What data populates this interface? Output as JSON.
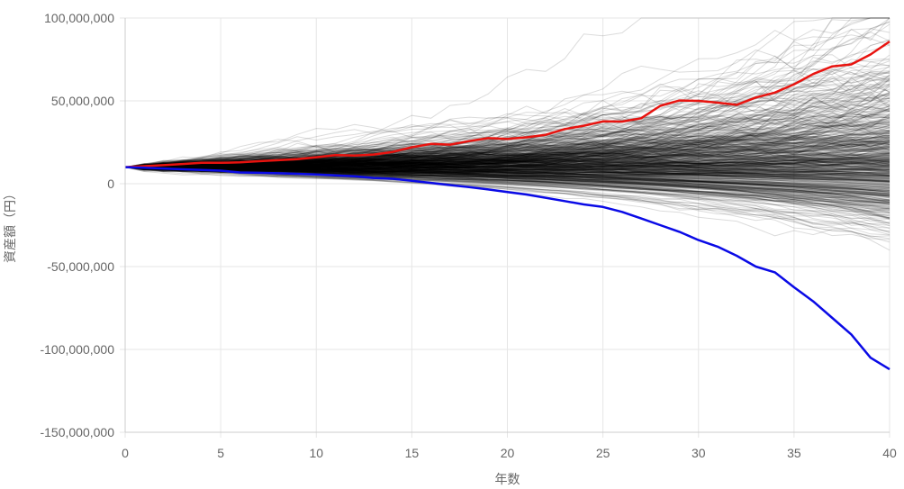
{
  "chart_data": {
    "type": "line",
    "xlabel": "年数",
    "ylabel": "資産額（円）",
    "xlim": [
      0,
      40
    ],
    "ylim": [
      -150000000,
      100000000
    ],
    "x_ticks": [
      0,
      5,
      10,
      15,
      20,
      25,
      30,
      35,
      40
    ],
    "y_ticks": [
      100000000,
      50000000,
      0,
      -50000000,
      -100000000,
      -150000000
    ],
    "x_tick_labels": [
      "0",
      "5",
      "10",
      "15",
      "20",
      "25",
      "30",
      "35",
      "40"
    ],
    "y_tick_labels": [
      "100,000,000",
      "50,000,000",
      "0",
      "-50,000,000",
      "-100,000,000",
      "-150,000,000"
    ],
    "grid": true,
    "legend": "none",
    "simulation": {
      "n_paths": 600,
      "start_value": 10000000,
      "color": "#000000"
    },
    "series": [
      {
        "color": "#e8130f",
        "x": [
          0,
          1,
          2,
          3,
          4,
          5,
          6,
          7,
          8,
          9,
          10,
          11,
          12,
          13,
          14,
          15,
          16,
          17,
          18,
          19,
          20,
          21,
          22,
          23,
          24,
          25,
          26,
          27,
          28,
          29,
          30,
          31,
          32,
          33,
          34,
          35,
          36,
          37,
          38,
          39,
          40
        ],
        "values": [
          10000000,
          10600000,
          11200000,
          11900000,
          12600000,
          12600000,
          12900000,
          13600000,
          14200000,
          14800000,
          16000000,
          17300000,
          17000000,
          17600000,
          19200000,
          22000000,
          24000000,
          23600000,
          25700000,
          27500000,
          27000000,
          28000000,
          29500000,
          33000000,
          35000000,
          37600000,
          37500000,
          39500000,
          47000000,
          50200000,
          50000000,
          48900000,
          47600000,
          52000000,
          55000000,
          60000000,
          66200000,
          70800000,
          72000000,
          78000000,
          85800000
        ]
      },
      {
        "color": "#0a0ae6",
        "x": [
          0,
          1,
          2,
          3,
          4,
          5,
          6,
          7,
          8,
          9,
          10,
          11,
          12,
          13,
          14,
          15,
          16,
          17,
          18,
          19,
          20,
          21,
          22,
          23,
          24,
          25,
          26,
          27,
          28,
          29,
          30,
          31,
          32,
          33,
          34,
          35,
          36,
          37,
          38,
          39,
          40
        ],
        "values": [
          10000000,
          9600000,
          9200000,
          8700000,
          8300000,
          7900000,
          6800000,
          6600000,
          6300000,
          6000000,
          5600000,
          5000000,
          4500000,
          3500000,
          3000000,
          1800000,
          500000,
          -800000,
          -2000000,
          -3500000,
          -5000000,
          -6500000,
          -8500000,
          -10500000,
          -12500000,
          -14000000,
          -17000000,
          -21000000,
          -25000000,
          -29000000,
          -34000000,
          -38000000,
          -43500000,
          -50000000,
          -53500000,
          -62500000,
          -71000000,
          -81000000,
          -91000000,
          -105000000,
          -112000000
        ]
      }
    ]
  }
}
